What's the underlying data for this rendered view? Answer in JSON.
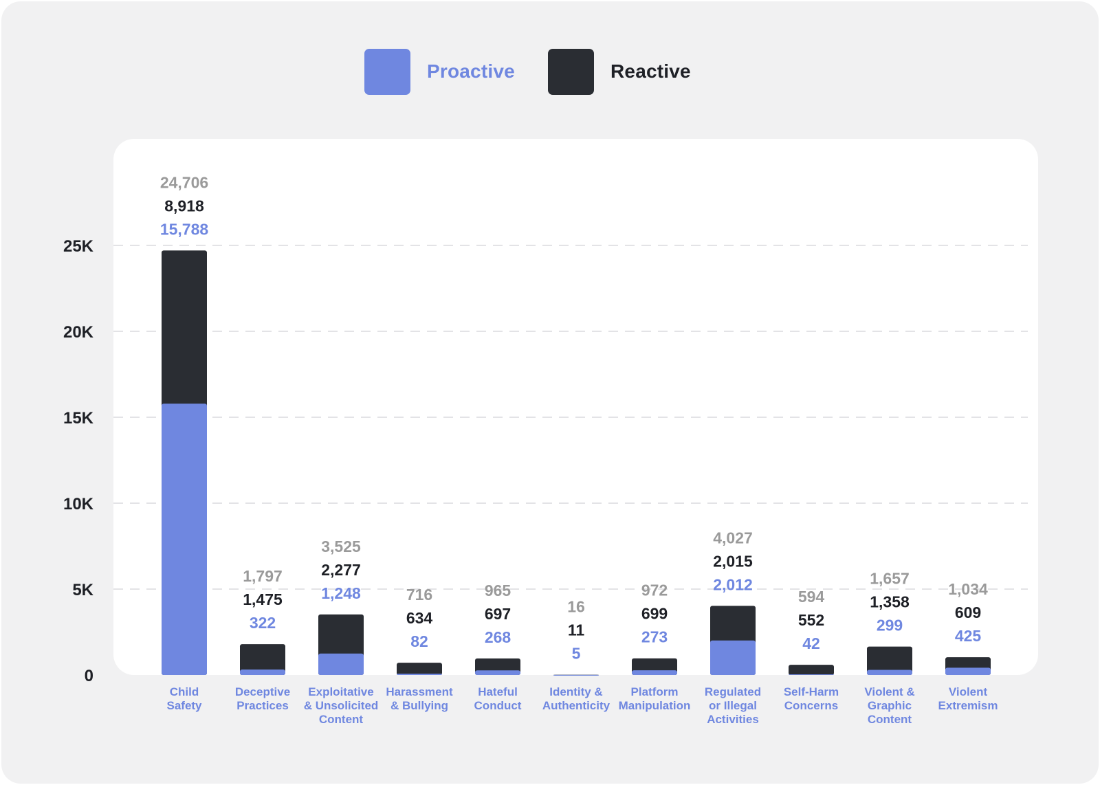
{
  "chart_data": {
    "type": "bar",
    "stacked": true,
    "categories": [
      [
        "Child",
        "Safety"
      ],
      [
        "Deceptive",
        "Practices"
      ],
      [
        "Exploitative",
        "& Unsolicited",
        "Content"
      ],
      [
        "Harassment",
        "& Bullying"
      ],
      [
        "Hateful",
        "Conduct"
      ],
      [
        "Identity &",
        "Authenticity"
      ],
      [
        "Platform",
        "Manipulation"
      ],
      [
        "Regulated",
        "or Illegal",
        "Activities"
      ],
      [
        "Self-Harm",
        "Concerns"
      ],
      [
        "Violent &",
        "Graphic",
        "Content"
      ],
      [
        "Violent",
        "Extremism"
      ]
    ],
    "series": [
      {
        "name": "Proactive",
        "color": "#6f87e0",
        "values": [
          15788,
          322,
          1248,
          82,
          268,
          5,
          273,
          2012,
          42,
          299,
          425
        ],
        "labels": [
          "15,788",
          "322",
          "1,248",
          "82",
          "268",
          "5",
          "273",
          "2,012",
          "42",
          "299",
          "425"
        ]
      },
      {
        "name": "Reactive",
        "color": "#2a2d33",
        "values": [
          8918,
          1475,
          2277,
          634,
          697,
          11,
          699,
          2015,
          552,
          1358,
          609
        ],
        "labels": [
          "8,918",
          "1,475",
          "2,277",
          "634",
          "697",
          "11",
          "699",
          "2,015",
          "552",
          "1,358",
          "609"
        ]
      }
    ],
    "totals": [
      24706,
      1797,
      3525,
      716,
      965,
      16,
      972,
      4027,
      594,
      1657,
      1034
    ],
    "total_labels": [
      "24,706",
      "1,797",
      "3,525",
      "716",
      "965",
      "16",
      "972",
      "4,027",
      "594",
      "1,657",
      "1,034"
    ],
    "yticks": [
      0,
      5000,
      10000,
      15000,
      20000,
      25000
    ],
    "ytick_labels": [
      "0",
      "5K",
      "10K",
      "15K",
      "20K",
      "25K"
    ],
    "ylim": [
      0,
      25000
    ],
    "grid": true,
    "legend": "top-center",
    "total_label_color": "#9a9a9a"
  }
}
